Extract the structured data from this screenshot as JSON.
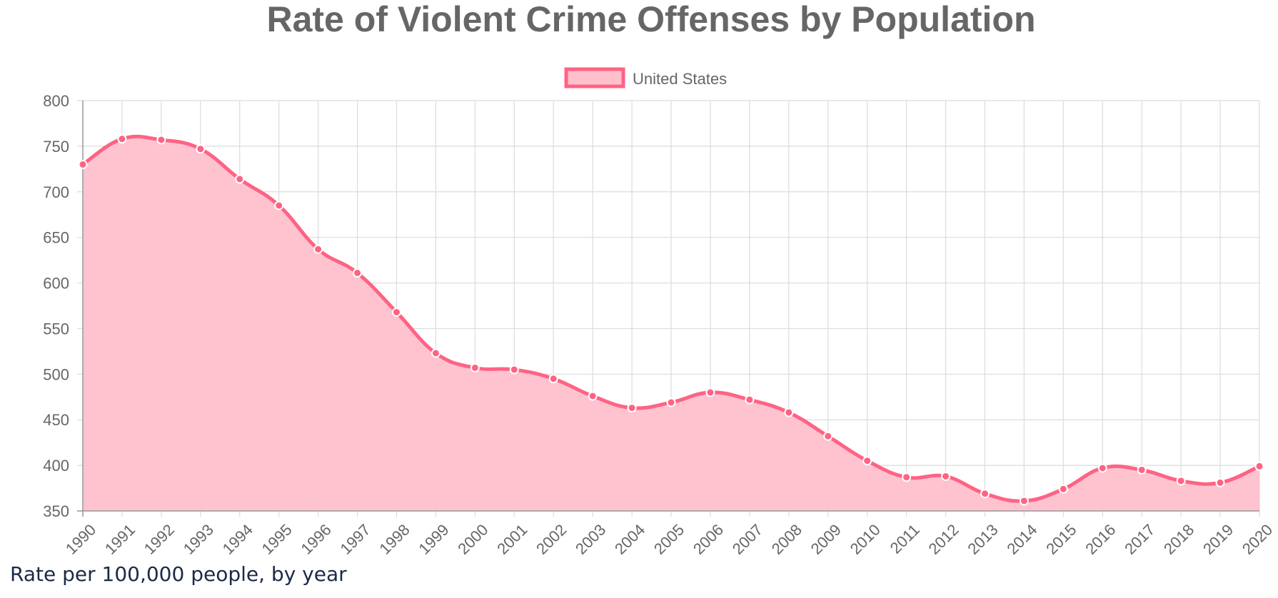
{
  "chart_data": {
    "type": "area",
    "title": "Rate of Violent Crime Offenses by Population",
    "caption": "Rate per 100,000 people, by year",
    "xlabel": "",
    "ylabel": "",
    "ylim": [
      350,
      800
    ],
    "y_ticks": [
      350,
      400,
      450,
      500,
      550,
      600,
      650,
      700,
      750,
      800
    ],
    "grid": true,
    "smooth": true,
    "legend_position": "top-center",
    "x": [
      "1990",
      "1991",
      "1992",
      "1993",
      "1994",
      "1995",
      "1996",
      "1997",
      "1998",
      "1999",
      "2000",
      "2001",
      "2002",
      "2003",
      "2004",
      "2005",
      "2006",
      "2007",
      "2008",
      "2009",
      "2010",
      "2011",
      "2012",
      "2013",
      "2014",
      "2015",
      "2016",
      "2017",
      "2018",
      "2019",
      "2020"
    ],
    "series": [
      {
        "name": "United States",
        "line_color": "#ff6384",
        "fill_color": "#ffc0cd",
        "values": [
          730,
          758,
          757,
          747,
          714,
          685,
          637,
          611,
          568,
          523,
          507,
          505,
          495,
          476,
          463,
          469,
          480,
          472,
          458,
          432,
          405,
          387,
          388,
          369,
          361,
          374,
          397,
          395,
          383,
          381,
          399
        ]
      }
    ]
  }
}
